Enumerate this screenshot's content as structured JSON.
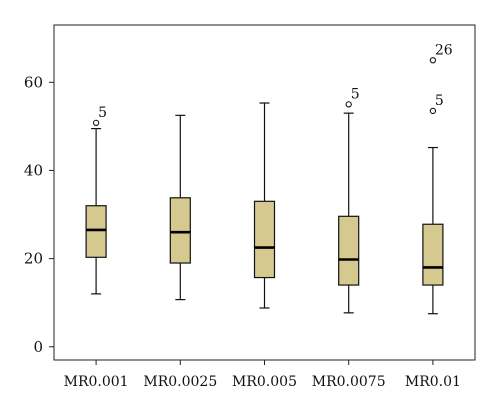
{
  "chart_data": {
    "type": "boxplot",
    "title": "",
    "xlabel": "",
    "ylabel": "",
    "ylim": [
      -3,
      73
    ],
    "yticks": [
      0,
      20,
      40,
      60
    ],
    "grid": false,
    "box_color": "#d6c98f",
    "categories": [
      "MR0.001",
      "MR0.0025",
      "MR0.005",
      "MR0.0075",
      "MR0.01"
    ],
    "boxes": [
      {
        "whisker_low": 12.0,
        "q1": 20.3,
        "median": 26.5,
        "q3": 32.0,
        "whisker_high": 49.5,
        "outliers": [
          {
            "value": 50.8,
            "label": "5"
          }
        ]
      },
      {
        "whisker_low": 10.7,
        "q1": 19.0,
        "median": 26.0,
        "q3": 33.8,
        "whisker_high": 52.5,
        "outliers": []
      },
      {
        "whisker_low": 8.8,
        "q1": 15.7,
        "median": 22.5,
        "q3": 33.0,
        "whisker_high": 55.3,
        "outliers": []
      },
      {
        "whisker_low": 7.7,
        "q1": 14.0,
        "median": 19.8,
        "q3": 29.6,
        "whisker_high": 53.0,
        "outliers": [
          {
            "value": 55.0,
            "label": "5"
          }
        ]
      },
      {
        "whisker_low": 7.5,
        "q1": 14.0,
        "median": 18.0,
        "q3": 27.8,
        "whisker_high": 45.2,
        "outliers": [
          {
            "value": 53.5,
            "label": "5"
          },
          {
            "value": 65.0,
            "label": "26"
          }
        ]
      }
    ]
  }
}
